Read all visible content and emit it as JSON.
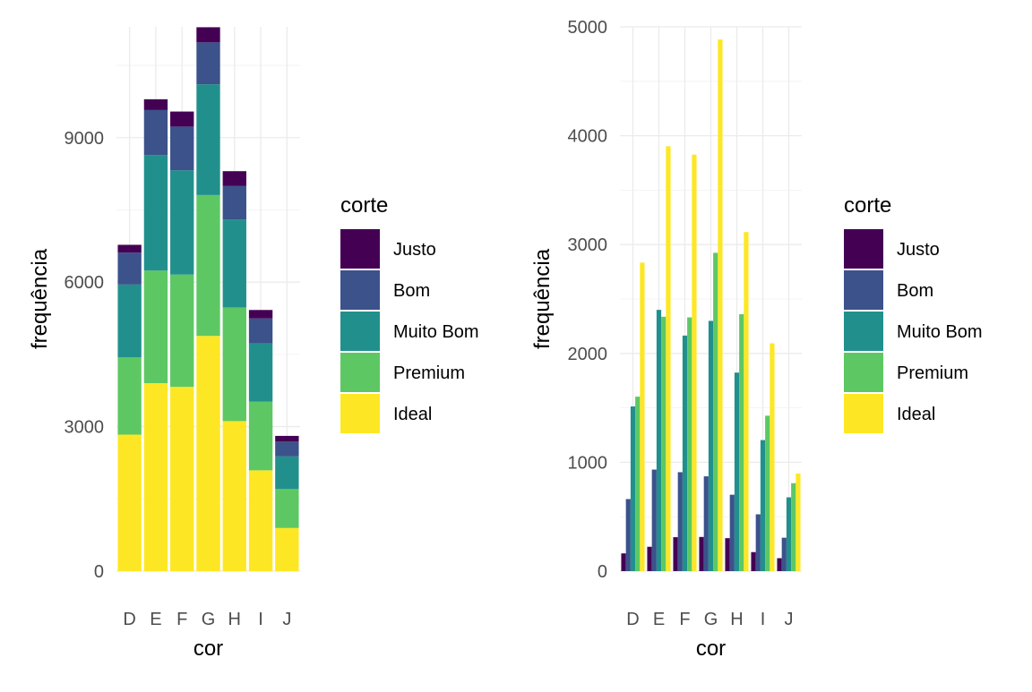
{
  "chart_data": [
    {
      "type": "bar",
      "position": "stack",
      "xlabel": "cor",
      "ylabel": "frequência",
      "categories": [
        "D",
        "E",
        "F",
        "G",
        "H",
        "I",
        "J"
      ],
      "ylim": [
        0,
        11300
      ],
      "yticks": [
        0,
        3000,
        6000,
        9000
      ],
      "legend": {
        "title": "corte",
        "placement": "right"
      },
      "grid": true,
      "series": [
        {
          "name": "Justo",
          "color": "#440154",
          "values": [
            163,
            224,
            312,
            314,
            303,
            175,
            119
          ]
        },
        {
          "name": "Bom",
          "color": "#3B528B",
          "values": [
            662,
            933,
            909,
            871,
            702,
            522,
            307
          ]
        },
        {
          "name": "Muito Bom",
          "color": "#21908C",
          "values": [
            1513,
            2400,
            2164,
            2299,
            1824,
            1204,
            678
          ]
        },
        {
          "name": "Premium",
          "color": "#5DC863",
          "values": [
            1603,
            2337,
            2331,
            2924,
            2360,
            1428,
            808
          ]
        },
        {
          "name": "Ideal",
          "color": "#FDE725",
          "values": [
            2834,
            3903,
            3826,
            4884,
            3115,
            2093,
            896
          ]
        }
      ]
    },
    {
      "type": "bar",
      "position": "dodge",
      "xlabel": "cor",
      "ylabel": "frequência",
      "categories": [
        "D",
        "E",
        "F",
        "G",
        "H",
        "I",
        "J"
      ],
      "ylim": [
        0,
        5000
      ],
      "yticks": [
        0,
        1000,
        2000,
        3000,
        4000,
        5000
      ],
      "legend": {
        "title": "corte",
        "placement": "right"
      },
      "grid": true,
      "series": [
        {
          "name": "Justo",
          "color": "#440154",
          "values": [
            163,
            224,
            312,
            314,
            303,
            175,
            119
          ]
        },
        {
          "name": "Bom",
          "color": "#3B528B",
          "values": [
            662,
            933,
            909,
            871,
            702,
            522,
            307
          ]
        },
        {
          "name": "Muito Bom",
          "color": "#21908C",
          "values": [
            1513,
            2400,
            2164,
            2299,
            1824,
            1204,
            678
          ]
        },
        {
          "name": "Premium",
          "color": "#5DC863",
          "values": [
            1603,
            2337,
            2331,
            2924,
            2360,
            1428,
            808
          ]
        },
        {
          "name": "Ideal",
          "color": "#FDE725",
          "values": [
            2834,
            3903,
            3826,
            4884,
            3115,
            2093,
            896
          ]
        }
      ]
    }
  ]
}
